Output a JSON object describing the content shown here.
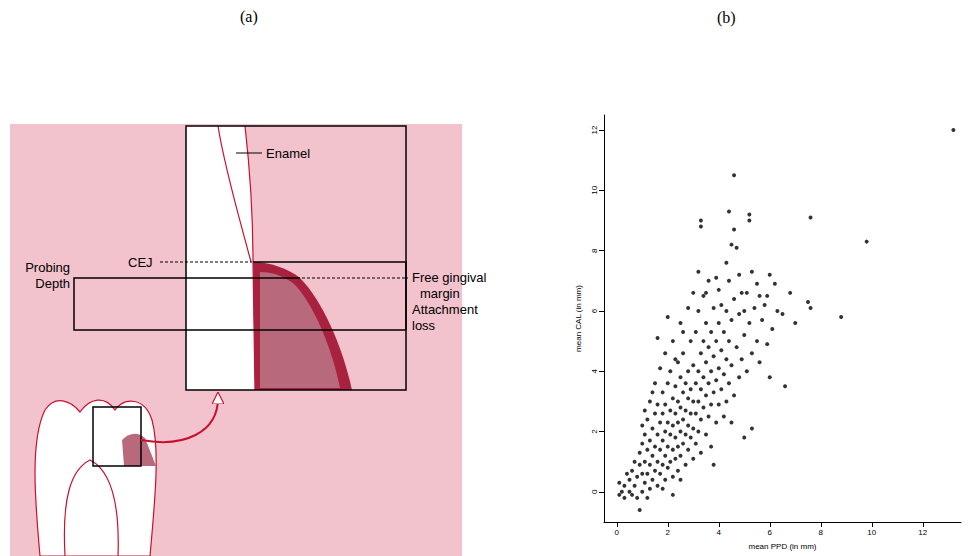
{
  "diagram": {
    "title": "(a)",
    "labels": {
      "enamel": "Enamel",
      "free_gingival_margin": "Free gingival margin",
      "cej": "CEJ",
      "probing_depth": "Probing Depth",
      "attachment_loss": "Attachment loss"
    }
  },
  "chart_data": {
    "type": "scatter",
    "title": "(b)",
    "x_label": "mean PPD (in mm)",
    "y_label": "mean CAL (in mm)",
    "color": "#000000",
    "marker": "circle",
    "grid": false,
    "xlim": [
      -0.5,
      13.5
    ],
    "ylim": [
      -1,
      12.5
    ],
    "xticks": [
      0,
      2,
      4,
      6,
      8,
      10,
      12
    ],
    "yticks": [
      0,
      2,
      4,
      6,
      8,
      10,
      12
    ],
    "x": [
      0.1,
      0.1,
      0.3,
      0.3,
      0.5,
      0.5,
      0.6,
      0.7,
      0.7,
      0.8,
      0.8,
      0.9,
      0.9,
      0.9,
      1.0,
      1.0,
      1.0,
      0.6,
      0.4,
      0.2,
      1.1,
      1.1,
      1.1,
      1.2,
      1.2,
      1.2,
      1.3,
      1.3,
      1.3,
      1.3,
      1.4,
      1.4,
      1.4,
      1.5,
      1.5,
      1.5,
      1.5,
      1.6,
      1.6,
      1.6,
      1.6,
      1.7,
      1.7,
      1.7,
      1.7,
      1.8,
      1.8,
      1.8,
      1.8,
      1.9,
      1.9,
      1.9,
      1.9,
      1.9,
      2.0,
      2.0,
      2.0,
      2.0,
      1.2,
      1.4,
      1.0,
      1.6,
      1.1,
      1.8,
      2.1,
      2.1,
      2.1,
      2.1,
      2.2,
      2.2,
      2.2,
      2.2,
      2.2,
      2.3,
      2.3,
      2.3,
      2.3,
      2.4,
      2.4,
      2.4,
      2.4,
      2.4,
      2.5,
      2.5,
      2.5,
      2.5,
      2.5,
      2.6,
      2.6,
      2.6,
      2.6,
      2.7,
      2.7,
      2.7,
      2.7,
      2.8,
      2.8,
      2.8,
      2.8,
      2.8,
      2.9,
      2.9,
      2.9,
      2.9,
      3.0,
      3.0,
      3.0,
      3.0,
      3.0,
      2.3,
      2.6,
      2.0,
      2.2,
      2.5,
      3.1,
      3.1,
      3.1,
      3.1,
      3.2,
      3.2,
      3.2,
      3.2,
      3.3,
      3.3,
      3.3,
      3.3,
      3.3,
      3.3,
      3.4,
      3.4,
      3.4,
      3.4,
      3.5,
      3.5,
      3.5,
      3.5,
      3.6,
      3.6,
      3.6,
      3.6,
      3.7,
      3.7,
      3.7,
      3.7,
      3.8,
      3.8,
      3.8,
      3.9,
      3.9,
      3.9,
      3.9,
      4.0,
      4.0,
      4.0,
      4.0,
      3.5,
      3.2,
      3.8,
      4.1,
      4.1,
      4.1,
      4.2,
      4.2,
      4.2,
      4.3,
      4.3,
      4.3,
      4.3,
      4.4,
      4.4,
      4.4,
      4.5,
      4.5,
      4.5,
      4.5,
      4.6,
      4.6,
      4.6,
      4.6,
      4.7,
      4.7,
      4.8,
      4.8,
      4.8,
      4.9,
      4.9,
      5.0,
      5.0,
      5.0,
      4.4,
      5.1,
      5.1,
      5.2,
      5.2,
      5.2,
      5.3,
      5.3,
      5.3,
      5.4,
      5.5,
      5.5,
      5.6,
      5.6,
      5.7,
      5.8,
      5.9,
      5.9,
      6.0,
      6.0,
      6.1,
      6.2,
      6.3,
      6.5,
      6.6,
      6.8,
      7.0,
      7.5,
      7.6,
      7.6,
      8.8,
      9.8,
      13.2
    ],
    "values": [
      -0.1,
      0.3,
      -0.2,
      0.2,
      0.0,
      0.4,
      0.7,
      0.2,
      1.0,
      -0.2,
      0.5,
      -0.6,
      0.9,
      1.3,
      0.0,
      0.6,
      1.6,
      -0.1,
      0.6,
      0.0,
      0.3,
      1.0,
      1.9,
      0.6,
      1.4,
      2.4,
      0.1,
      0.9,
      1.7,
      3.0,
      0.4,
      1.2,
      2.1,
      0.7,
      1.5,
      2.6,
      3.6,
      0.2,
      1.0,
      1.9,
      2.9,
      0.6,
      1.4,
      2.3,
      4.1,
      0.9,
      1.7,
      2.6,
      3.3,
      0.4,
      1.2,
      2.0,
      2.9,
      4.6,
      0.8,
      1.5,
      2.3,
      3.6,
      -0.2,
      3.3,
      2.2,
      5.1,
      2.7,
      0.1,
      1.0,
      1.9,
      2.7,
      4.0,
      0.5,
      1.4,
      2.2,
      3.1,
      5.0,
      1.1,
      1.8,
      2.6,
      3.5,
      0.7,
      1.5,
      2.3,
      3.0,
      4.3,
      1.2,
      2.0,
      2.8,
      3.8,
      5.6,
      1.6,
      2.4,
      3.3,
      4.6,
      0.9,
      1.9,
      2.7,
      3.6,
      1.4,
      2.2,
      3.1,
      4.0,
      6.1,
      1.8,
      2.6,
      3.4,
      5.0,
      1.1,
      2.1,
      3.0,
      4.2,
      6.6,
      4.4,
      5.3,
      5.8,
      -0.1,
      0.4,
      1.6,
      2.6,
      3.6,
      5.3,
      2.0,
      3.0,
      4.0,
      6.0,
      1.3,
      2.4,
      3.4,
      4.6,
      8.8,
      9.0,
      2.8,
      3.8,
      5.0,
      6.5,
      1.9,
      3.2,
      4.3,
      5.6,
      2.5,
      3.6,
      4.8,
      7.0,
      1.5,
      2.9,
      4.0,
      5.3,
      3.3,
      4.5,
      6.1,
      2.3,
      3.7,
      5.0,
      7.1,
      2.9,
      4.1,
      5.6,
      6.7,
      6.6,
      7.3,
      0.9,
      3.4,
      4.7,
      6.2,
      2.5,
      3.9,
      5.3,
      3.0,
      4.4,
      6.0,
      7.6,
      3.6,
      5.0,
      9.3,
      2.3,
      4.2,
      5.7,
      8.2,
      3.2,
      6.4,
      8.7,
      10.5,
      4.8,
      8.1,
      3.8,
      5.9,
      7.2,
      4.4,
      6.6,
      1.8,
      5.2,
      6.0,
      7.0,
      4.0,
      6.6,
      9.0,
      9.2,
      5.6,
      2.1,
      4.6,
      7.3,
      6.1,
      5.0,
      6.9,
      4.3,
      6.5,
      5.7,
      6.2,
      6.5,
      4.9,
      3.8,
      7.2,
      5.4,
      6.9,
      6.0,
      5.9,
      3.5,
      6.6,
      5.6,
      6.3,
      6.1,
      9.1,
      5.8,
      8.3,
      12.0
    ]
  }
}
